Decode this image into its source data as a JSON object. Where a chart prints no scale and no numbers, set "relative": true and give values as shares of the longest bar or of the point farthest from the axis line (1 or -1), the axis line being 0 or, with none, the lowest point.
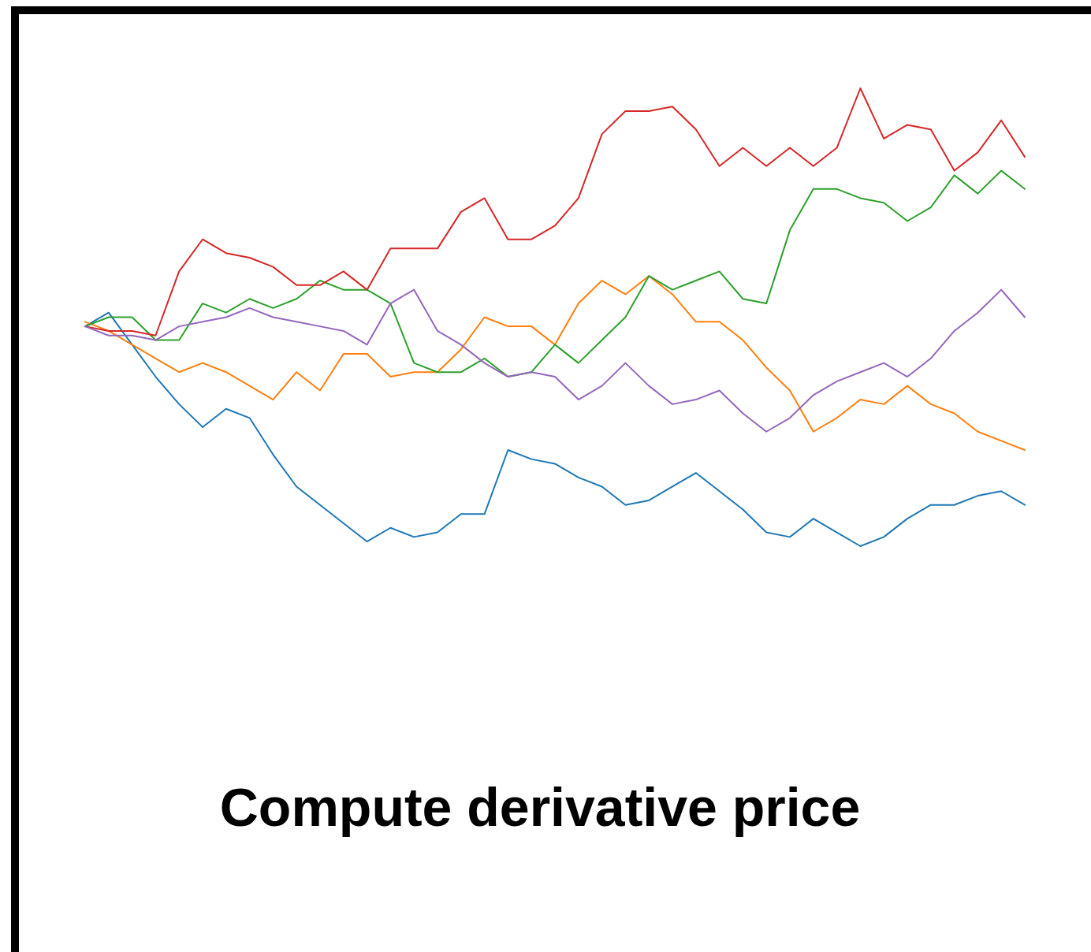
{
  "chart_data": {
    "type": "line",
    "title": "Compute derivative price",
    "relative": true,
    "grid": false,
    "marker": "none",
    "line_style": "solid",
    "categories": [
      null,
      null,
      null,
      null,
      null,
      null,
      null,
      null,
      null,
      null,
      null,
      null,
      null,
      null,
      null,
      null,
      null,
      null,
      null,
      null,
      null,
      null,
      null,
      null,
      null,
      null,
      null,
      null,
      null,
      null,
      null,
      null,
      null,
      null,
      null,
      null,
      null,
      null,
      null,
      null,
      null
    ],
    "series": [
      {
        "color": "#1f77b4",
        "values": [
          0.48,
          0.51,
          0.44,
          0.37,
          0.31,
          0.26,
          0.3,
          0.28,
          0.2,
          0.13,
          0.09,
          0.05,
          0.01,
          0.04,
          0.02,
          0.03,
          0.07,
          0.07,
          0.21,
          0.19,
          0.18,
          0.15,
          0.13,
          0.09,
          0.1,
          0.13,
          0.16,
          0.12,
          0.08,
          0.03,
          0.02,
          0.06,
          0.03,
          0.0,
          0.02,
          0.06,
          0.09,
          0.09,
          0.11,
          0.12,
          0.09
        ]
      },
      {
        "color": "#ff7f0e",
        "values": [
          0.49,
          0.47,
          0.44,
          0.41,
          0.38,
          0.4,
          0.38,
          0.35,
          0.32,
          0.38,
          0.34,
          0.42,
          0.42,
          0.37,
          0.38,
          0.38,
          0.43,
          0.5,
          0.48,
          0.48,
          0.44,
          0.53,
          0.58,
          0.55,
          0.59,
          0.55,
          0.49,
          0.49,
          0.45,
          0.39,
          0.34,
          0.25,
          0.28,
          0.32,
          0.31,
          0.35,
          0.31,
          0.29,
          0.25,
          0.23,
          0.21
        ]
      },
      {
        "color": "#2ca02c",
        "values": [
          0.48,
          0.5,
          0.5,
          0.45,
          0.45,
          0.53,
          0.51,
          0.54,
          0.52,
          0.54,
          0.58,
          0.56,
          0.56,
          0.53,
          0.4,
          0.38,
          0.38,
          0.41,
          0.37,
          0.38,
          0.44,
          0.4,
          0.45,
          0.5,
          0.59,
          0.56,
          0.58,
          0.6,
          0.54,
          0.53,
          0.69,
          0.78,
          0.78,
          0.76,
          0.75,
          0.71,
          0.74,
          0.81,
          0.77,
          0.82,
          0.78
        ]
      },
      {
        "color": "#d62728",
        "values": [
          0.48,
          0.47,
          0.47,
          0.46,
          0.6,
          0.67,
          0.64,
          0.63,
          0.61,
          0.57,
          0.57,
          0.6,
          0.56,
          0.65,
          0.65,
          0.65,
          0.73,
          0.76,
          0.67,
          0.67,
          0.7,
          0.76,
          0.9,
          0.95,
          0.95,
          0.96,
          0.91,
          0.83,
          0.87,
          0.83,
          0.87,
          0.83,
          0.87,
          1.0,
          0.89,
          0.92,
          0.91,
          0.82,
          0.86,
          0.93,
          0.85
        ]
      },
      {
        "color": "#9467bd",
        "values": [
          0.48,
          0.46,
          0.46,
          0.45,
          0.48,
          0.49,
          0.5,
          0.52,
          0.5,
          0.49,
          0.48,
          0.47,
          0.44,
          0.53,
          0.56,
          0.47,
          0.44,
          0.4,
          0.37,
          0.38,
          0.37,
          0.32,
          0.35,
          0.4,
          0.35,
          0.31,
          0.32,
          0.34,
          0.29,
          0.25,
          0.28,
          0.33,
          0.36,
          0.38,
          0.4,
          0.37,
          0.41,
          0.47,
          0.51,
          0.56,
          0.5
        ]
      }
    ]
  }
}
